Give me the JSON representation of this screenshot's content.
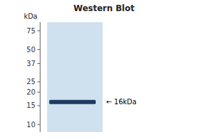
{
  "chart_data": {
    "type": "gel",
    "title": "Western Blot",
    "y_label": "kDa",
    "values": [
      16.2
    ],
    "color": "#1e3a5f",
    "annotation": "← 16kDa",
    "ylim": [
      8.5,
      90
    ],
    "yticks": [
      75,
      50,
      37,
      25,
      20,
      15,
      10
    ],
    "log": "y",
    "tick_labels": "y"
  }
}
